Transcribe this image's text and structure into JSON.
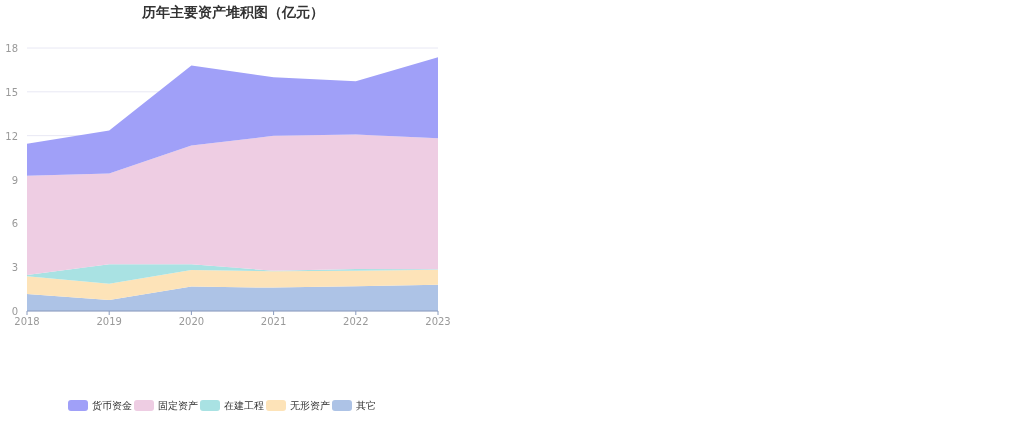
{
  "chart_data": {
    "type": "area",
    "title": "历年主要资产堆积图（亿元）",
    "categories": [
      "2018",
      "2019",
      "2020",
      "2021",
      "2022",
      "2023"
    ],
    "stacked": true,
    "ylim": [
      0,
      18
    ],
    "yticks": [
      0,
      3,
      6,
      9,
      12,
      15,
      18
    ],
    "grid": "y",
    "legend": "bottom",
    "series": [
      {
        "name": "其它",
        "color": "#adc3e6",
        "values": [
          1.16,
          0.75,
          1.67,
          1.6,
          1.69,
          1.8
        ]
      },
      {
        "name": "无形资产",
        "color": "#fde3b8",
        "values": [
          1.21,
          1.12,
          1.14,
          1.12,
          1.07,
          1.03
        ]
      },
      {
        "name": "在建工程",
        "color": "#a9e2e3",
        "values": [
          0.1,
          1.33,
          0.39,
          0.04,
          0.12,
          0.02
        ]
      },
      {
        "name": "固定资产",
        "color": "#eecde3",
        "values": [
          6.78,
          6.21,
          8.12,
          9.23,
          9.2,
          8.98
        ]
      },
      {
        "name": "货币资金",
        "color": "#a0a0f8",
        "values": [
          2.19,
          2.94,
          5.48,
          4.01,
          3.65,
          5.54
        ]
      }
    ]
  }
}
